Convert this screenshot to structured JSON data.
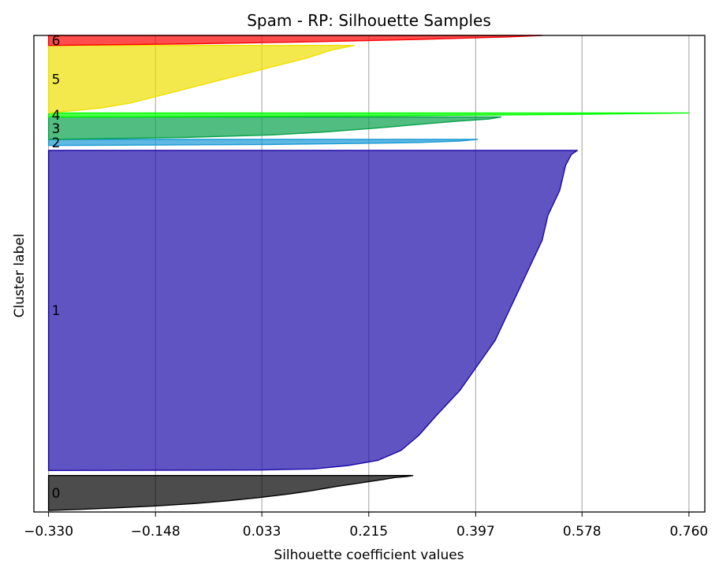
{
  "chart_data": {
    "type": "silhouette",
    "title": "Spam - RP: Silhouette Samples",
    "xlabel": "Silhouette coefficient values",
    "ylabel": "Cluster label",
    "xlim": [
      -0.355,
      0.787
    ],
    "x_ticks": [
      -0.33,
      -0.148,
      0.033,
      0.215,
      0.397,
      0.578,
      0.76
    ],
    "x_tick_labels": [
      "−0.330",
      "−0.148",
      "0.033",
      "0.215",
      "0.397",
      "0.578",
      "0.760"
    ],
    "grid": "vertical",
    "baseline": -0.33,
    "clusters": [
      {
        "label": "0",
        "color": "#000000",
        "start": 0,
        "end": 70,
        "profile": [
          [
            0,
            -0.33
          ],
          [
            2,
            -0.28
          ],
          [
            5,
            -0.22
          ],
          [
            9,
            -0.15
          ],
          [
            14,
            -0.08
          ],
          [
            20,
            -0.02
          ],
          [
            26,
            0.03
          ],
          [
            33,
            0.08
          ],
          [
            40,
            0.12
          ],
          [
            48,
            0.16
          ],
          [
            55,
            0.2
          ],
          [
            62,
            0.24
          ],
          [
            66,
            0.26
          ],
          [
            68,
            0.28
          ],
          [
            70,
            0.29
          ]
        ]
      },
      {
        "label": "1",
        "color": "#1c0aa8",
        "start": 80,
        "end": 720,
        "profile": [
          [
            0,
            -0.33
          ],
          [
            1,
            0.03
          ],
          [
            3,
            0.12
          ],
          [
            10,
            0.18
          ],
          [
            20,
            0.23
          ],
          [
            40,
            0.27
          ],
          [
            70,
            0.3
          ],
          [
            110,
            0.33
          ],
          [
            160,
            0.37
          ],
          [
            210,
            0.4
          ],
          [
            260,
            0.43
          ],
          [
            310,
            0.45
          ],
          [
            360,
            0.47
          ],
          [
            410,
            0.49
          ],
          [
            460,
            0.51
          ],
          [
            510,
            0.52
          ],
          [
            560,
            0.54
          ],
          [
            610,
            0.55
          ],
          [
            632,
            0.56
          ],
          [
            640,
            0.57
          ]
        ]
      },
      {
        "label": "2",
        "color": "#1a9ad6",
        "start": 730,
        "end": 742,
        "profile": [
          [
            0,
            -0.33
          ],
          [
            2,
            0.05
          ],
          [
            4,
            0.2
          ],
          [
            6,
            0.3
          ],
          [
            9,
            0.37
          ],
          [
            12,
            0.4
          ]
        ]
      },
      {
        "label": "3",
        "color": "#07a14a",
        "start": 742,
        "end": 787,
        "profile": [
          [
            0,
            -0.33
          ],
          [
            4,
            -0.1
          ],
          [
            9,
            0.05
          ],
          [
            15,
            0.14
          ],
          [
            22,
            0.22
          ],
          [
            29,
            0.29
          ],
          [
            36,
            0.36
          ],
          [
            41,
            0.42
          ],
          [
            45,
            0.44
          ]
        ]
      },
      {
        "label": "4",
        "color": "#00ff00",
        "start": 787,
        "end": 795,
        "profile": [
          [
            0,
            -0.33
          ],
          [
            2,
            0.2
          ],
          [
            5,
            0.55
          ],
          [
            8,
            0.76
          ]
        ]
      },
      {
        "label": "5",
        "color": "#f0e000",
        "start": 795,
        "end": 930,
        "profile": [
          [
            0,
            -0.33
          ],
          [
            10,
            -0.24
          ],
          [
            20,
            -0.19
          ],
          [
            35,
            -0.14
          ],
          [
            50,
            -0.09
          ],
          [
            65,
            -0.04
          ],
          [
            80,
            0.01
          ],
          [
            95,
            0.06
          ],
          [
            110,
            0.11
          ],
          [
            125,
            0.15
          ],
          [
            135,
            0.19
          ]
        ]
      },
      {
        "label": "6",
        "color": "#ff0000",
        "start": 930,
        "end": 950,
        "profile": [
          [
            0,
            -0.33
          ],
          [
            3,
            -0.1
          ],
          [
            7,
            0.1
          ],
          [
            12,
            0.3
          ],
          [
            17,
            0.45
          ],
          [
            20,
            0.51
          ]
        ]
      }
    ],
    "ylim": [
      -3,
      950
    ]
  }
}
